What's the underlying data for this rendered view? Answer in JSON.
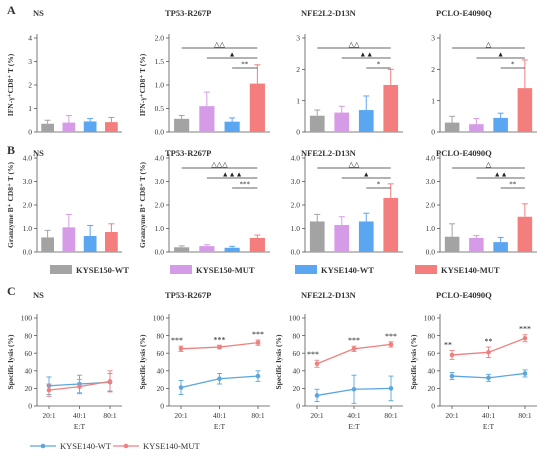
{
  "panel_labels": [
    "A",
    "B",
    "C"
  ],
  "legend_bar": [
    {
      "name": "KYSE150-WT",
      "color": "#a3a3a3"
    },
    {
      "name": "KYSE150-MUT",
      "color": "#d69be6"
    },
    {
      "name": "KYSE140-WT",
      "color": "#5aa6f0"
    },
    {
      "name": "KYSE140-MUT",
      "color": "#f47d7d"
    }
  ],
  "legend_line": [
    {
      "name": "KYSE140-WT",
      "color": "#5aa6de"
    },
    {
      "name": "KYSE140-MUT",
      "color": "#f08080"
    }
  ],
  "chart_data": [
    {
      "type": "bar",
      "panel": "A",
      "title": "NS",
      "ylabel": "IFN-γ⁺CD8⁺ T (%)",
      "ylim": [
        0,
        4
      ],
      "yticks": [
        "0",
        "1",
        "2",
        "3",
        "4"
      ],
      "categories": [
        "KYSE150-WT",
        "KYSE150-MUT",
        "KYSE140-WT",
        "KYSE140-MUT"
      ],
      "values": [
        0.35,
        0.4,
        0.45,
        0.42
      ],
      "errors": [
        0.15,
        0.3,
        0.12,
        0.2
      ],
      "sig": []
    },
    {
      "type": "bar",
      "panel": "A",
      "title": "TP53-R267P",
      "ylabel": "IFN-γ⁺CD8⁺ T (%)",
      "ylim": [
        0,
        2
      ],
      "yticks": [
        "0.0",
        "0.5",
        "1.0",
        "1.5",
        "2.0"
      ],
      "categories": [
        "KYSE150-WT",
        "KYSE150-MUT",
        "KYSE140-WT",
        "KYSE140-MUT"
      ],
      "values": [
        0.28,
        0.55,
        0.22,
        1.03
      ],
      "errors": [
        0.07,
        0.3,
        0.08,
        0.4
      ],
      "sig": [
        {
          "from": 0,
          "to": 3,
          "label": "△△"
        },
        {
          "from": 1,
          "to": 3,
          "label": "▲"
        },
        {
          "from": 2,
          "to": 3,
          "label": "**"
        }
      ]
    },
    {
      "type": "bar",
      "panel": "A",
      "title": "NFE2L2-D13N",
      "ylabel": "",
      "ylim": [
        0,
        3
      ],
      "yticks": [
        "0",
        "1",
        "2",
        "3"
      ],
      "categories": [
        "KYSE150-WT",
        "KYSE150-MUT",
        "KYSE140-WT",
        "KYSE140-MUT"
      ],
      "values": [
        0.52,
        0.62,
        0.7,
        1.5
      ],
      "errors": [
        0.18,
        0.2,
        0.45,
        0.5
      ],
      "sig": [
        {
          "from": 0,
          "to": 3,
          "label": "△△"
        },
        {
          "from": 1,
          "to": 3,
          "label": "▲▲"
        },
        {
          "from": 2,
          "to": 3,
          "label": "*"
        }
      ]
    },
    {
      "type": "bar",
      "panel": "A",
      "title": "PCLO-E4090Q",
      "ylabel": "",
      "ylim": [
        0,
        3
      ],
      "yticks": [
        "0",
        "1",
        "2",
        "3"
      ],
      "categories": [
        "KYSE150-WT",
        "KYSE150-MUT",
        "KYSE140-WT",
        "KYSE140-MUT"
      ],
      "values": [
        0.3,
        0.25,
        0.45,
        1.4
      ],
      "errors": [
        0.2,
        0.18,
        0.15,
        0.9
      ],
      "sig": [
        {
          "from": 0,
          "to": 3,
          "label": "△"
        },
        {
          "from": 1,
          "to": 3,
          "label": "▲"
        },
        {
          "from": 2,
          "to": 3,
          "label": "*"
        }
      ]
    },
    {
      "type": "bar",
      "panel": "B",
      "title": "NS",
      "ylabel": "Granzyme B⁺ CD8⁺ T (%)",
      "ylim": [
        0,
        4
      ],
      "yticks": [
        "0.0",
        "1.0",
        "2.0",
        "3.0",
        "4.0"
      ],
      "categories": [
        "KYSE150-WT",
        "KYSE150-MUT",
        "KYSE140-WT",
        "KYSE140-MUT"
      ],
      "values": [
        0.62,
        1.05,
        0.68,
        0.85
      ],
      "errors": [
        0.3,
        0.55,
        0.45,
        0.35
      ],
      "sig": []
    },
    {
      "type": "bar",
      "panel": "B",
      "title": "TP53-R267P",
      "ylabel": "Granzyme B⁺ CD8⁺ T (%)",
      "ylim": [
        0,
        4
      ],
      "yticks": [
        "0.0",
        "1.0",
        "2.0",
        "3.0",
        "4.0"
      ],
      "categories": [
        "KYSE150-WT",
        "KYSE150-MUT",
        "KYSE140-WT",
        "KYSE140-MUT"
      ],
      "values": [
        0.2,
        0.25,
        0.18,
        0.6
      ],
      "errors": [
        0.06,
        0.06,
        0.06,
        0.12
      ],
      "sig": [
        {
          "from": 0,
          "to": 3,
          "label": "△△△"
        },
        {
          "from": 1,
          "to": 3,
          "label": "▲▲▲"
        },
        {
          "from": 2,
          "to": 3,
          "label": "***"
        }
      ]
    },
    {
      "type": "bar",
      "panel": "B",
      "title": "NFE2L2-D13N",
      "ylabel": "",
      "ylim": [
        0,
        4
      ],
      "yticks": [
        "0.0",
        "1.0",
        "2.0",
        "3.0",
        "4.0"
      ],
      "categories": [
        "KYSE150-WT",
        "KYSE150-MUT",
        "KYSE140-WT",
        "KYSE140-MUT"
      ],
      "values": [
        1.3,
        1.15,
        1.3,
        2.3
      ],
      "errors": [
        0.3,
        0.35,
        0.35,
        0.6
      ],
      "sig": [
        {
          "from": 0,
          "to": 3,
          "label": "△△"
        },
        {
          "from": 1,
          "to": 3,
          "label": "▲"
        },
        {
          "from": 2,
          "to": 3,
          "label": "*"
        }
      ]
    },
    {
      "type": "bar",
      "panel": "B",
      "title": "PCLO-E4090Q",
      "ylabel": "",
      "ylim": [
        0,
        4
      ],
      "yticks": [
        "0.0",
        "1.0",
        "2.0",
        "3.0",
        "4.0"
      ],
      "categories": [
        "KYSE150-WT",
        "KYSE150-MUT",
        "KYSE140-WT",
        "KYSE140-MUT"
      ],
      "values": [
        0.65,
        0.6,
        0.42,
        1.5
      ],
      "errors": [
        0.55,
        0.1,
        0.2,
        0.55
      ],
      "sig": [
        {
          "from": 0,
          "to": 3,
          "label": "△"
        },
        {
          "from": 1,
          "to": 3,
          "label": "▲▲"
        },
        {
          "from": 2,
          "to": 3,
          "label": "**"
        }
      ]
    },
    {
      "type": "line",
      "panel": "C",
      "title": "NS",
      "ylabel": "Specific lysis (%)",
      "xlabel": "E:T",
      "ylim": [
        0,
        100
      ],
      "yticks": [
        "0",
        "20",
        "40",
        "60",
        "80",
        "100"
      ],
      "x": [
        "20:1",
        "40:1",
        "80:1"
      ],
      "series": [
        {
          "name": "KYSE140-WT",
          "values": [
            23,
            25,
            27
          ],
          "errors": [
            10,
            10,
            10
          ]
        },
        {
          "name": "KYSE140-MUT",
          "values": [
            18,
            22,
            28
          ],
          "errors": [
            7,
            8,
            12
          ]
        }
      ],
      "sig": []
    },
    {
      "type": "line",
      "panel": "C",
      "title": "TP53-R267P",
      "ylabel": "Specific lysis (%)",
      "xlabel": "E:T",
      "ylim": [
        0,
        100
      ],
      "yticks": [
        "0",
        "20",
        "40",
        "60",
        "80",
        "100"
      ],
      "x": [
        "20:1",
        "40:1",
        "80:1"
      ],
      "series": [
        {
          "name": "KYSE140-WT",
          "values": [
            21,
            31,
            34
          ],
          "errors": [
            8,
            6,
            6
          ]
        },
        {
          "name": "KYSE140-MUT",
          "values": [
            65,
            67,
            72
          ],
          "errors": [
            3,
            2,
            3
          ]
        }
      ],
      "sig": [
        "***",
        "***",
        "***"
      ]
    },
    {
      "type": "line",
      "panel": "C",
      "title": "NFE2L2-D13N",
      "ylabel": "Specific lysis (%)",
      "xlabel": "E:T",
      "ylim": [
        0,
        100
      ],
      "yticks": [
        "0",
        "20",
        "40",
        "60",
        "80",
        "100"
      ],
      "x": [
        "20:1",
        "40:1",
        "80:1"
      ],
      "series": [
        {
          "name": "KYSE140-WT",
          "values": [
            12,
            19,
            20
          ],
          "errors": [
            7,
            16,
            14
          ]
        },
        {
          "name": "KYSE140-MUT",
          "values": [
            48,
            65,
            70
          ],
          "errors": [
            4,
            3,
            3
          ]
        }
      ],
      "sig": [
        "***",
        "***",
        "***"
      ]
    },
    {
      "type": "line",
      "panel": "C",
      "title": "PCLO-E4090Q",
      "ylabel": "Specific lysis (%)",
      "xlabel": "E:T",
      "ylim": [
        0,
        100
      ],
      "yticks": [
        "0",
        "20",
        "40",
        "60",
        "80",
        "100"
      ],
      "x": [
        "20:1",
        "40:1",
        "80:1"
      ],
      "series": [
        {
          "name": "KYSE140-WT",
          "values": [
            34,
            32,
            37
          ],
          "errors": [
            4,
            4,
            4
          ]
        },
        {
          "name": "KYSE140-MUT",
          "values": [
            58,
            61,
            77
          ],
          "errors": [
            5,
            6,
            4
          ]
        }
      ],
      "sig": [
        "**",
        "**",
        "***"
      ]
    }
  ]
}
